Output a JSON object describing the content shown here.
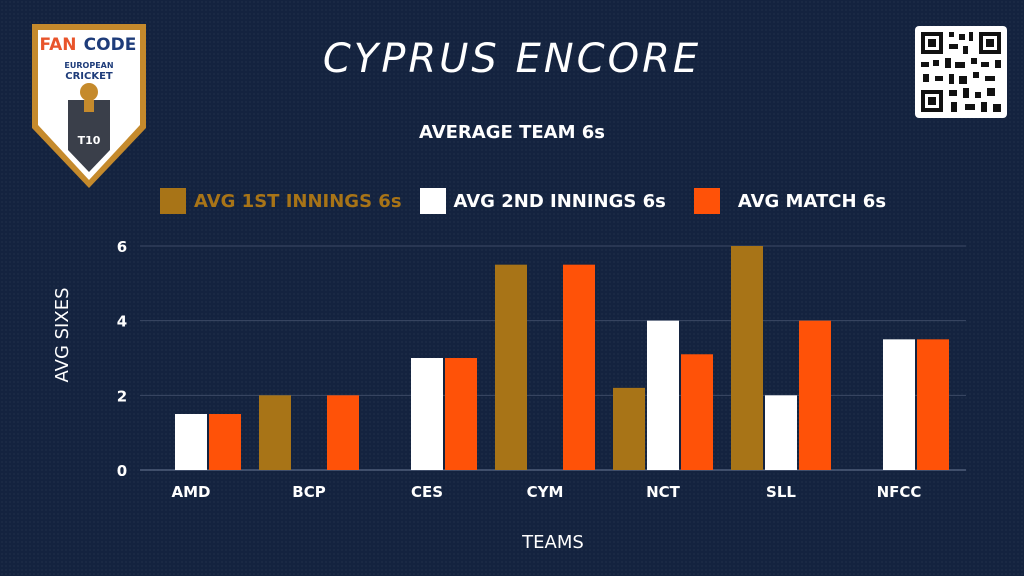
{
  "branding": {
    "logo_word_fan": "FAN",
    "logo_word_code": "CODE",
    "logo_line1": "EUROPEAN",
    "logo_line2": "CRICKET",
    "logo_badge": "T10"
  },
  "header": {
    "title": "CYPRUS ENCORE"
  },
  "colors": {
    "first_innings": "#a87417",
    "second_innings": "#ffffff",
    "match": "#ff5208",
    "background": "#14233f",
    "gridline": "#3b4a66"
  },
  "chart_data": {
    "type": "bar",
    "title": "AVERAGE TEAM 6s",
    "xlabel": "TEAMS",
    "ylabel": "AVG SIXES",
    "ylim": [
      0,
      6
    ],
    "yticks": [
      0,
      2,
      4,
      6
    ],
    "grid": true,
    "legend_position": "top",
    "categories": [
      "AMD",
      "BCP",
      "CES",
      "CYM",
      "NCT",
      "SLL",
      "NFCC"
    ],
    "series": [
      {
        "name": "AVG 1ST INNINGS 6s",
        "color": "#a87417",
        "values": [
          0,
          2,
          0,
          5.5,
          2.2,
          6,
          0
        ]
      },
      {
        "name": "AVG 2ND INNINGS 6s",
        "color": "#ffffff",
        "values": [
          1.5,
          0,
          3,
          0,
          4,
          2,
          3.5
        ]
      },
      {
        "name": "AVG MATCH 6s",
        "color": "#ff5208",
        "values": [
          1.5,
          2,
          3,
          5.5,
          3.1,
          4,
          3.5
        ]
      }
    ]
  }
}
